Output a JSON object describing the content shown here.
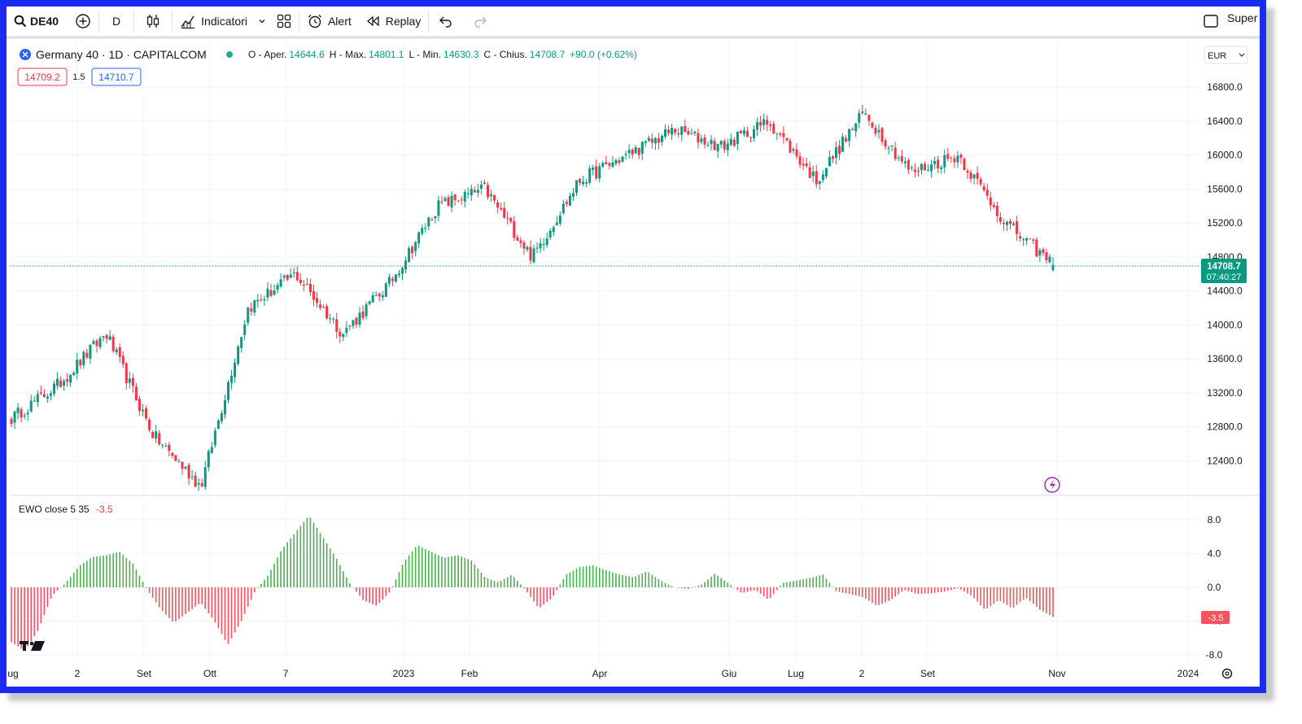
{
  "toolbar": {
    "symbol": "DE40",
    "interval": "D",
    "indicators_label": "Indicatori",
    "alert_label": "Alert",
    "replay_label": "Replay",
    "right_label": "Super"
  },
  "legend": {
    "title": "Germany 40 · 1D · CAPITALCOM",
    "o_label": "O - Aper.",
    "o_value": "14644.6",
    "h_label": "H - Max.",
    "h_value": "14801.1",
    "l_label": "L - Min.",
    "l_value": "14630.3",
    "c_label": "C - Chius.",
    "c_value": "14708.7",
    "change": "+90.0 (+0.62%)",
    "bid": "14709.2",
    "spread": "1.5",
    "ask": "14710.7"
  },
  "currency": "EUR",
  "last_price": "14708.7",
  "countdown": "07:40:27",
  "ewo": {
    "label": "EWO close 5 35",
    "value": "-3.5",
    "value_tag": "-3.5"
  },
  "colors": {
    "up": "#089981",
    "down": "#f23645",
    "hist_up": "#4caf50",
    "hist_down": "#f7525f",
    "frame": "#1a2cf0",
    "accent": "#2962ff"
  },
  "chart_data": [
    {
      "type": "candlestick",
      "title": "Germany 40 · 1D · CAPITALCOM",
      "y_ticks": [
        12400,
        12800,
        13200,
        13600,
        14000,
        14400,
        14800,
        15200,
        15600,
        16000,
        16400,
        16800
      ],
      "y_tick_labels": [
        "12400.0",
        "12800.0",
        "13200.0",
        "13600.0",
        "14000.0",
        "14400.0",
        "14800.0",
        "15200.0",
        "15600.0",
        "16000.0",
        "16400.0",
        "16800.0"
      ],
      "x_tick_labels": [
        "ug",
        "2",
        "Set",
        "Ott",
        "7",
        "2023",
        "Feb",
        "Apr",
        "Giu",
        "Lug",
        "2",
        "Set",
        "Nov",
        "2024"
      ],
      "ylim": [
        12000,
        17000
      ],
      "path_x": [
        "Jul 2022",
        "Aug 2022",
        "Aug 2022",
        "Sep 2022",
        "Oct 2022",
        "Nov 2022",
        "Dec 2022",
        "Dec 2022",
        "Jan 2023",
        "Feb 2023",
        "Mar 2023",
        "Mar 2023",
        "Apr 2023",
        "May 2023",
        "Jun 2023",
        "Jun 2023",
        "Jul 2023",
        "Jul 2023",
        "Aug 2023",
        "Sep 2023",
        "Sep 2023",
        "Oct 2023",
        "Oct 2023"
      ],
      "path_y": [
        12900,
        13300,
        13900,
        12700,
        12100,
        14200,
        14600,
        13900,
        14500,
        15400,
        15600,
        14800,
        15700,
        16000,
        16300,
        16100,
        16400,
        15700,
        16500,
        15800,
        16000,
        15200,
        14708.7
      ],
      "last": {
        "open": 14644.6,
        "high": 14801.1,
        "low": 14630.3,
        "close": 14708.7,
        "change": 90.0,
        "change_pct": 0.62
      }
    },
    {
      "type": "bar",
      "title": "EWO close 5 35",
      "y_ticks": [
        -8,
        -4,
        0,
        4,
        8
      ],
      "y_tick_labels": [
        "-8.0",
        "-4.0",
        "0.0",
        "4.0",
        "8.0"
      ],
      "ylim": [
        -8,
        8
      ],
      "path_y": [
        -6.5,
        -7.5,
        -5,
        -1,
        0.5,
        2.5,
        3.6,
        3.8,
        4.2,
        2.8,
        -0.2,
        -2.5,
        -4.2,
        -3,
        -1.8,
        -4,
        -6.8,
        -4,
        -0.5,
        1.5,
        4.5,
        6.5,
        8.5,
        6,
        3.5,
        0.5,
        -1.5,
        -2.2,
        -0.5,
        3,
        5,
        4.2,
        3.5,
        3.8,
        3.2,
        1.2,
        0.6,
        1.5,
        -0.3,
        -2.5,
        -1.2,
        1.5,
        2.4,
        2.6,
        2,
        1.5,
        1.2,
        1.9,
        0.8,
        0,
        -0.2,
        0.3,
        1.6,
        0.5,
        -0.7,
        -0.3,
        -1.5,
        0.5,
        0.8,
        1.1,
        1.5,
        -0.5,
        -0.8,
        -1.2,
        -2.2,
        -1.5,
        -0.3,
        -0.8,
        -0.7,
        -0.5,
        -0.1,
        -1,
        -2.7,
        -1.5,
        -2.5,
        -1.2,
        -2.6,
        -3.5
      ]
    }
  ]
}
